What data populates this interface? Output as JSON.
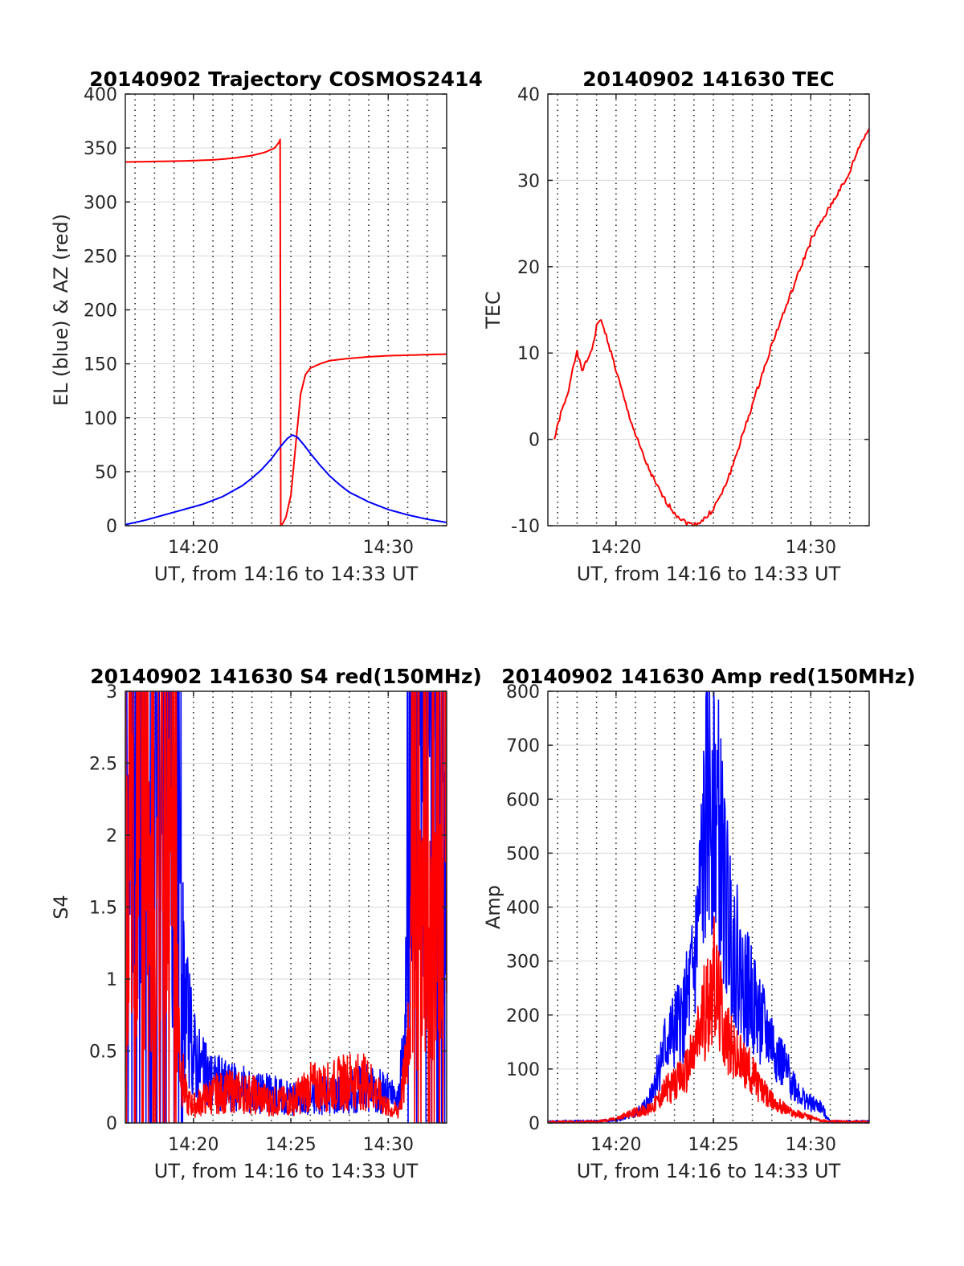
{
  "chart_data": [
    {
      "type": "line",
      "title": "20140902 Trajectory COSMOS2414",
      "xlabel": "UT, from 14:16 to 14:33 UT",
      "ylabel": "EL (blue) & AZ (red)",
      "xlim": [
        "14:16:30",
        "14:33:00"
      ],
      "ylim": [
        0,
        400
      ],
      "yticks": [
        0,
        50,
        100,
        150,
        200,
        250,
        300,
        350,
        400
      ],
      "xticks": [
        "14:20",
        "14:30"
      ],
      "grid": true,
      "series": [
        {
          "color": "#ff0000",
          "x": [
            "14:16:30",
            "14:18:00",
            "14:19:30",
            "14:21:00",
            "14:22:00",
            "14:23:00",
            "14:23:40",
            "14:24:10",
            "14:24:25",
            "14:24:27",
            "14:24:29",
            "14:24:35",
            "14:24:45",
            "14:25:00",
            "14:25:15",
            "14:25:30",
            "14:25:45",
            "14:26:00",
            "14:26:30",
            "14:27:00",
            "14:28:00",
            "14:29:00",
            "14:30:00",
            "14:31:00",
            "14:32:00",
            "14:33:00"
          ],
          "y": [
            337,
            337.5,
            338,
            339,
            340.5,
            343,
            346,
            350,
            356,
            358,
            0,
            2,
            8,
            28,
            75,
            122,
            140,
            146,
            150,
            153,
            155,
            156.5,
            157.5,
            158,
            158.5,
            159
          ]
        },
        {
          "color": "#0000ff",
          "x": [
            "14:16:30",
            "14:17:30",
            "14:18:30",
            "14:19:30",
            "14:20:30",
            "14:21:30",
            "14:22:30",
            "14:23:00",
            "14:23:30",
            "14:24:00",
            "14:24:30",
            "14:24:50",
            "14:25:05",
            "14:25:20",
            "14:25:40",
            "14:26:00",
            "14:26:30",
            "14:27:00",
            "14:27:30",
            "14:28:00",
            "14:29:00",
            "14:30:00",
            "14:31:00",
            "14:32:00",
            "14:33:00"
          ],
          "y": [
            1,
            5,
            10,
            15,
            20,
            27,
            37,
            44,
            52,
            62,
            74,
            81,
            84,
            82,
            75,
            67,
            56,
            46,
            38,
            31,
            22,
            15,
            10,
            6,
            3
          ]
        }
      ]
    },
    {
      "type": "line",
      "title": "20140902 141630 TEC",
      "xlabel": "UT, from 14:16 to 14:33 UT",
      "ylabel": "TEC",
      "xlim": [
        "14:16:30",
        "14:33:00"
      ],
      "ylim": [
        -10,
        40
      ],
      "yticks": [
        -10,
        0,
        10,
        20,
        30,
        40
      ],
      "xticks": [
        "14:20",
        "14:30"
      ],
      "grid": true,
      "series": [
        {
          "color": "#ff0000",
          "x": [
            "14:16:50",
            "14:17:10",
            "14:17:30",
            "14:17:50",
            "14:18:00",
            "14:18:15",
            "14:18:30",
            "14:18:50",
            "14:19:00",
            "14:19:10",
            "14:19:30",
            "14:20:00",
            "14:20:30",
            "14:21:00",
            "14:21:30",
            "14:22:00",
            "14:22:30",
            "14:23:00",
            "14:23:30",
            "14:24:00",
            "14:24:20",
            "14:24:40",
            "14:25:00",
            "14:25:30",
            "14:26:00",
            "14:26:30",
            "14:27:00",
            "14:27:30",
            "14:28:00",
            "14:28:30",
            "14:29:00",
            "14:29:30",
            "14:30:00",
            "14:30:30",
            "14:31:00",
            "14:31:30",
            "14:31:50",
            "14:32:10",
            "14:32:30",
            "14:32:45",
            "14:33:00"
          ],
          "y": [
            0,
            3,
            5,
            9,
            10,
            8,
            9,
            11,
            13,
            14,
            12,
            8,
            4,
            0.5,
            -2.5,
            -5,
            -7,
            -8.5,
            -9.5,
            -10,
            -9.5,
            -9,
            -8,
            -6,
            -3,
            0.5,
            4,
            7.5,
            11,
            14,
            17,
            20,
            23,
            25,
            27,
            29,
            30,
            32,
            34,
            35,
            36
          ]
        }
      ]
    },
    {
      "type": "line",
      "title": "20140902 141630 S4 red(150MHz)",
      "xlabel": "UT, from 14:16 to 14:33 UT",
      "ylabel": "S4",
      "xlim": [
        "14:16:30",
        "14:33:00"
      ],
      "ylim": [
        0,
        3
      ],
      "yticks": [
        0,
        0.5,
        1,
        1.5,
        2,
        2.5,
        3
      ],
      "xticks": [
        "14:20",
        "14:25",
        "14:30"
      ],
      "grid": true,
      "series": [
        {
          "color": "#0000ff",
          "x": [
            "14:16:30",
            "14:17:00",
            "14:17:30",
            "14:18:00",
            "14:18:30",
            "14:19:00",
            "14:19:20",
            "14:19:40",
            "14:20:00",
            "14:20:30",
            "14:21:00",
            "14:22:00",
            "14:23:00",
            "14:24:00",
            "14:25:00",
            "14:26:00",
            "14:27:00",
            "14:28:00",
            "14:29:00",
            "14:30:00",
            "14:30:30",
            "14:30:50",
            "14:31:10",
            "14:31:30",
            "14:32:00",
            "14:32:30",
            "14:33:00"
          ],
          "y": [
            2.6,
            2.8,
            2.7,
            2.5,
            2.4,
            2.0,
            1.2,
            0.7,
            0.5,
            0.35,
            0.3,
            0.25,
            0.22,
            0.2,
            0.18,
            0.17,
            0.2,
            0.22,
            0.25,
            0.2,
            0.15,
            0.5,
            1.8,
            2.3,
            2.6,
            2.7,
            2.5
          ]
        },
        {
          "color": "#ff0000",
          "x": [
            "14:16:30",
            "14:17:00",
            "14:17:30",
            "14:18:00",
            "14:18:30",
            "14:19:00",
            "14:19:20",
            "14:19:40",
            "14:20:00",
            "14:21:00",
            "14:22:00",
            "14:23:00",
            "14:24:00",
            "14:25:00",
            "14:26:00",
            "14:27:00",
            "14:28:00",
            "14:29:00",
            "14:30:00",
            "14:30:30",
            "14:30:50",
            "14:31:10",
            "14:31:30",
            "14:32:00",
            "14:32:30",
            "14:33:00"
          ],
          "y": [
            1.6,
            1.8,
            1.5,
            1.3,
            1.7,
            1.5,
            0.4,
            0.15,
            0.12,
            0.2,
            0.22,
            0.2,
            0.15,
            0.15,
            0.25,
            0.25,
            0.3,
            0.28,
            0.1,
            0.08,
            0.3,
            1.0,
            1.2,
            1.4,
            1.2,
            1.3
          ]
        }
      ]
    },
    {
      "type": "line",
      "title": "20140902 141630 Amp red(150MHz)",
      "xlabel": "UT, from 14:16 to 14:33 UT",
      "ylabel": "Amp",
      "xlim": [
        "14:16:30",
        "14:33:00"
      ],
      "ylim": [
        0,
        800
      ],
      "yticks": [
        0,
        100,
        200,
        300,
        400,
        500,
        600,
        700,
        800
      ],
      "xticks": [
        "14:20",
        "14:25",
        "14:30"
      ],
      "grid": true,
      "series": [
        {
          "color": "#0000ff",
          "x": [
            "14:16:30",
            "14:19:00",
            "14:20:00",
            "14:21:00",
            "14:21:40",
            "14:22:00",
            "14:22:30",
            "14:23:00",
            "14:23:30",
            "14:24:00",
            "14:24:20",
            "14:24:40",
            "14:25:00",
            "14:25:20",
            "14:25:40",
            "14:26:00",
            "14:26:30",
            "14:27:00",
            "14:27:30",
            "14:28:00",
            "14:28:30",
            "14:29:00",
            "14:29:30",
            "14:30:00",
            "14:30:30",
            "14:31:00",
            "14:33:00"
          ],
          "y": [
            2,
            3,
            5,
            15,
            40,
            80,
            140,
            170,
            200,
            280,
            420,
            580,
            640,
            520,
            400,
            340,
            260,
            230,
            180,
            150,
            110,
            80,
            50,
            35,
            30,
            2,
            2
          ]
        },
        {
          "color": "#ff0000",
          "x": [
            "14:16:30",
            "14:19:00",
            "14:20:00",
            "14:21:00",
            "14:21:40",
            "14:22:00",
            "14:22:30",
            "14:23:00",
            "14:23:30",
            "14:24:00",
            "14:24:30",
            "14:25:00",
            "14:25:20",
            "14:25:40",
            "14:26:00",
            "14:26:30",
            "14:27:00",
            "14:27:30",
            "14:28:00",
            "14:29:00",
            "14:30:00",
            "14:30:30",
            "14:31:00",
            "14:33:00"
          ],
          "y": [
            1,
            2,
            8,
            20,
            25,
            35,
            60,
            70,
            90,
            130,
            200,
            270,
            220,
            160,
            130,
            110,
            90,
            60,
            40,
            20,
            10,
            5,
            2,
            1
          ]
        }
      ]
    }
  ]
}
